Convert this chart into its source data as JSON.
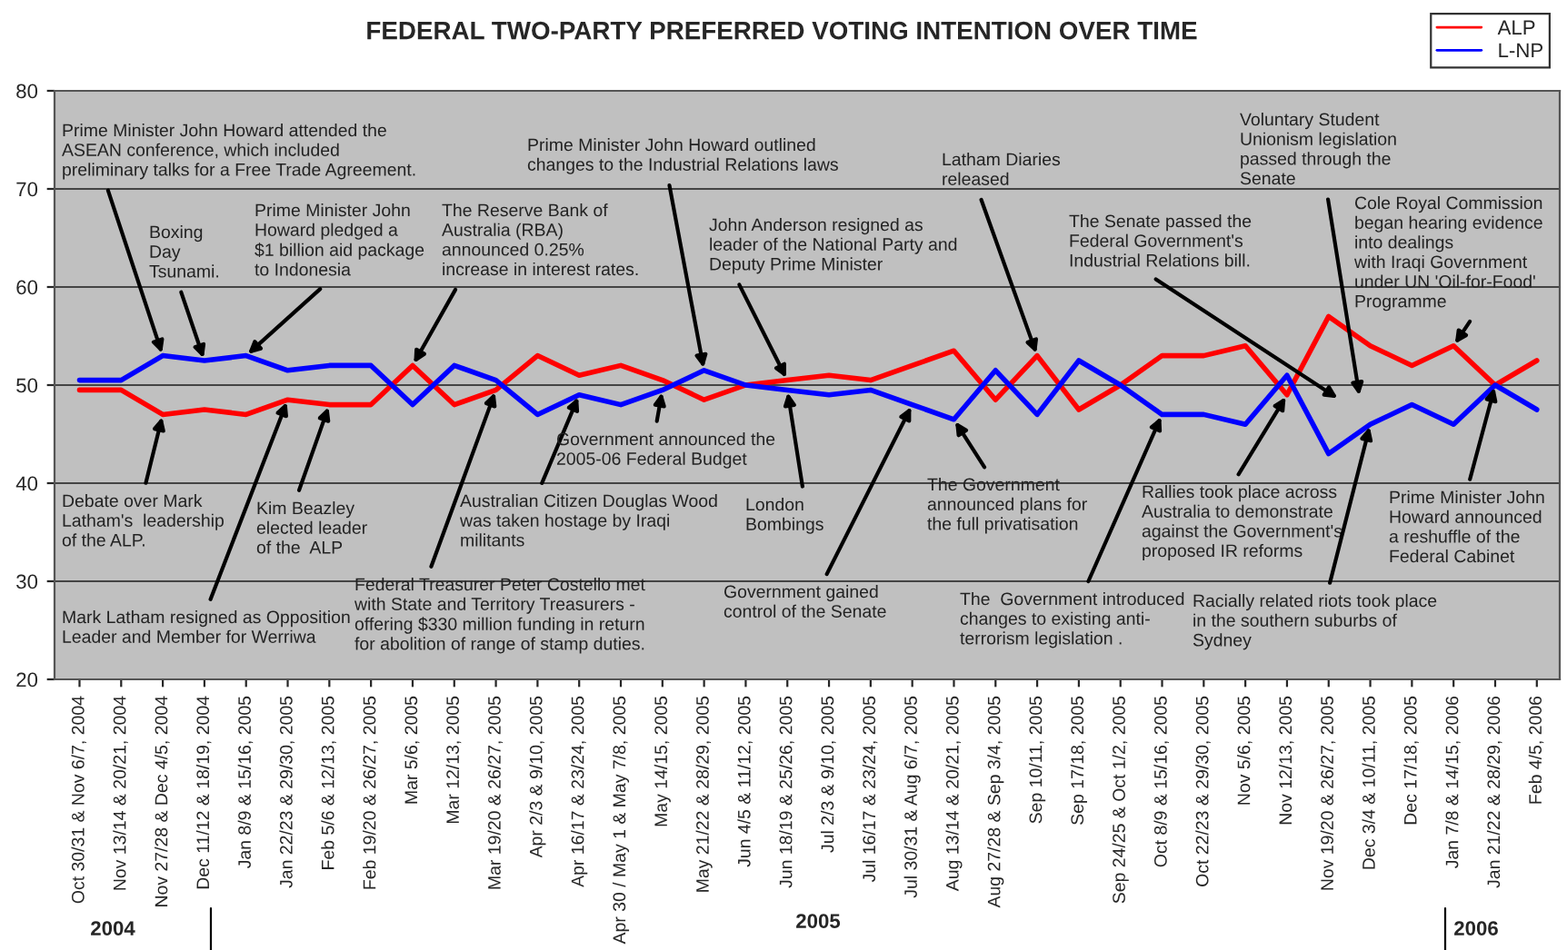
{
  "chart_data": {
    "type": "line",
    "title": "FEDERAL TWO-PARTY PREFERRED VOTING INTENTION OVER TIME",
    "categories": [
      "Oct 30/31 & Nov 6/7, 2004",
      "Nov 13/14 & 20/21, 2004",
      "Nov 27/28 & Dec 4/5, 2004",
      "Dec 11/12 & 18/19, 2004",
      "Jan 8/9 & 15/16, 2005",
      "Jan 22/23 & 29/30, 2005",
      "Feb 5/6 & 12/13, 2005",
      "Feb 19/20 & 26/27, 2005",
      "Mar 5/6, 2005",
      "Mar 12/13, 2005",
      "Mar 19/20 & 26/27, 2005",
      "Apr 2/3 & 9/10, 2005",
      "Apr 16/17 & 23/24, 2005",
      "Apr 30 / May 1 & May 7/8, 2005",
      "May 14/15, 2005",
      "May 21/22 & 28/29, 2005",
      "Jun 4/5 & 11/12, 2005",
      "Jun 18/19 & 25/26, 2005",
      "Jul 2/3 & 9/10, 2005",
      "Jul 16/17 & 23/24, 2005",
      "Jul 30/31 & Aug 6/7, 2005",
      "Aug 13/14 & 20/21, 2005",
      "Aug 27/28 & Sep 3/4, 2005",
      "Sep 10/11, 2005",
      "Sep 17/18, 2005",
      "Sep 24/25 & Oct 1/2, 2005",
      "Oct 8/9 & 15/16, 2005",
      "Oct 22/23 & 29/30, 2005",
      "Nov 5/6, 2005",
      "Nov 12/13, 2005",
      "Nov 19/20 & 26/27, 2005",
      "Dec 3/4 & 10/11, 2005",
      "Dec 17/18, 2005",
      "Jan 7/8 & 14/15, 2006",
      "Jan 21/22 & 28/29, 2006",
      "Feb 4/5, 2006"
    ],
    "series": [
      {
        "name": "ALP",
        "color": "#ff0000",
        "values": [
          49.5,
          49.5,
          47,
          47.5,
          47,
          48.5,
          48,
          48,
          52,
          48,
          49.5,
          53,
          51,
          52,
          50.5,
          48.5,
          50,
          50.5,
          51,
          50.5,
          52,
          53.5,
          48.5,
          53,
          47.5,
          50,
          53,
          53,
          54,
          49,
          57,
          54,
          52,
          54,
          50,
          52.5
        ]
      },
      {
        "name": "L-NP",
        "color": "#0000ff",
        "values": [
          50.5,
          50.5,
          53,
          52.5,
          53,
          51.5,
          52,
          52,
          48,
          52,
          50.5,
          47,
          49,
          48,
          49.5,
          51.5,
          50,
          49.5,
          49,
          49.5,
          48,
          46.5,
          51.5,
          47,
          52.5,
          50,
          47,
          47,
          46,
          51,
          43,
          46,
          48,
          46,
          50,
          47.5
        ]
      }
    ],
    "ylim": [
      20,
      80
    ],
    "yticks": [
      20,
      30,
      40,
      50,
      60,
      70,
      80
    ],
    "grid": "y",
    "legend": "top right",
    "marker": "none",
    "line_style": "solid",
    "annotations": [
      {
        "text": "Prime Minister John Howard attended the\nASEAN conference, which included\npreliminary talks for a Free Trade Agreement.",
        "x": "Nov 27/28 & Dec 4/5, 2004",
        "y": 53
      },
      {
        "text": "Boxing\nDay\nTsunami.",
        "x": "Dec 11/12 & 18/19, 2004",
        "y": 52.5
      },
      {
        "text": "Prime Minister John\nHoward pledged a\n$1 billion aid package\nto Indonesia",
        "x": "Jan 8/9 & 15/16, 2005",
        "y": 53
      },
      {
        "text": "The Reserve Bank of\nAustralia (RBA)\nannounced 0.25%\nincrease in interest rates.",
        "x": "Mar 5/6, 2005",
        "y": 52
      },
      {
        "text": "Prime Minister John Howard outlined\nchanges to the Industrial Relations laws",
        "x": "May 21/22 & 28/29, 2005",
        "y": 51.5
      },
      {
        "text": "John Anderson resigned as\nleader of the National Party and\nDeputy Prime Minister",
        "x": "Jun 18/19 & 25/26, 2005",
        "y": 50.5
      },
      {
        "text": "Latham Diaries\nreleased",
        "x": "Sep 10/11, 2005",
        "y": 53
      },
      "The Senate passed the\nFederal Government's\nIndustrial Relations bill.",
      "Voluntary Student\nUnionism legislation\npassed through the\nSenate",
      {
        "text": "Cole Royal Commission\nbegan hearing evidence\ninto dealings\nwith Iraqi Government\nunder UN 'Oil-for-Food'\nProgramme",
        "x": "Jan 7/8 & 14/15, 2006",
        "y": 54
      },
      {
        "text": "Debate over Mark\nLatham's  leadership\nof the ALP.",
        "x": "Nov 27/28 & Dec 4/5, 2004",
        "y": 47
      },
      {
        "text": "Kim Beazley\nelected leader\nof the  ALP",
        "x": "Feb 5/6 & 12/13, 2005",
        "y": 48
      },
      {
        "text": "Mark Latham resigned as Opposition\nLeader and Member for Werriwa",
        "x": "Jan 22/23 & 29/30, 2005",
        "y": 48.5
      },
      {
        "text": "Federal Treasurer Peter Costello met\nwith State and Territory Treasurers -\noffering $330 million funding in return\nfor abolition of range of stamp duties.",
        "x": "Mar 19/20 & 26/27, 2005",
        "y": 49.5
      },
      {
        "text": "Australian Citizen Douglas Wood\nwas taken hostage by Iraqi\nmilitants",
        "x": "Apr 16/17 & 23/24, 2005",
        "y": 49
      },
      {
        "text": "Government announced the\n2005-06 Federal Budget",
        "x": "May 14/15, 2005",
        "y": 49.5
      },
      {
        "text": "London\nBombings",
        "x": "Jun 18/19 & 25/26, 2005",
        "y": 49.5
      },
      {
        "text": "Government gained\ncontrol of the Senate",
        "x": "Jul 30/31 & Aug 6/7, 2005",
        "y": 48
      },
      {
        "text": "The Government\nannounced plans for\nthe full privatisation",
        "x": "Aug 13/14 & 20/21, 2005",
        "y": 46.5
      },
      {
        "text": "The  Government introduced\nchanges to existing anti-\nterrorism legislation .",
        "x": "Oct 8/9 & 15/16, 2005",
        "y": 47
      },
      {
        "text": "Rallies took place across\nAustralia to demonstrate\nagainst the Government's\nproposed IR reforms",
        "x": "Nov 12/13, 2005",
        "y": 49
      },
      {
        "text": "Racially related riots took place\nin the southern suburbs of\nSydney",
        "x": "Dec 3/4 & 10/11, 2005",
        "y": 46
      },
      {
        "text": "Prime Minister John\nHoward announced\na reshuffle of the\nFederal Cabinet",
        "x": "Jan 21/22 & 28/29, 2006",
        "y": 50
      },
      "2004",
      "2005",
      "2006"
    ]
  }
}
